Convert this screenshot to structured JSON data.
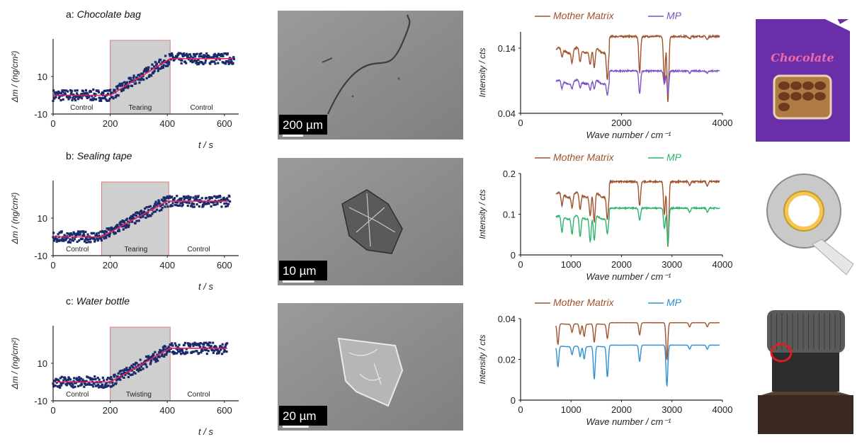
{
  "figure": {
    "rows": [
      {
        "panel_label": "a:",
        "panel_title": "Chocolate bag",
        "mass_chart": {
          "type": "line",
          "title": "a: Chocolate bag",
          "xlabel": "t / s",
          "ylabel": "Δm / (ng/cm²)",
          "xlim": [
            0,
            650
          ],
          "ylim": [
            -10,
            30
          ],
          "x_ticks": [
            "0",
            "200",
            "400",
            "600"
          ],
          "y_ticks": [
            "-10",
            "10"
          ],
          "shaded_region": [
            200,
            410
          ],
          "phase_labels": [
            {
              "label": "Control",
              "x": 100
            },
            {
              "label": "Tearing",
              "x": 305
            },
            {
              "label": "Control",
              "x": 520
            }
          ],
          "fit_line": {
            "x": [
              0,
              200,
              410,
              630
            ],
            "y": [
              0,
              0,
              19.5,
              19.5
            ]
          },
          "noise": 3.0,
          "x_range": [
            0,
            635
          ]
        },
        "sem": {
          "scale_label": "200 µm",
          "scale_bar_frac": 0.11,
          "particle": "fiber"
        },
        "ir_chart": {
          "type": "line",
          "xlabel": "Wave number / cm⁻¹",
          "ylabel": "Intensity / cts",
          "xlim": [
            0,
            4000
          ],
          "ylim": [
            0.04,
            0.165
          ],
          "x_ticks": [
            "0",
            "2000",
            "4000"
          ],
          "y_ticks": [
            "0.04",
            "0.14"
          ],
          "y_tick_values": [
            0.04,
            0.14
          ],
          "x_tick_values": [
            0,
            2000,
            4000
          ],
          "series": [
            {
              "name": "Mother Matrix",
              "color": "#a0522d",
              "base": 0.125,
              "top": 0.158,
              "dips": [
                [
                  820,
                  0.012
                ],
                [
                  1020,
                  0.018
                ],
                [
                  1180,
                  0.02
                ],
                [
                  1380,
                  0.022
                ],
                [
                  1460,
                  0.03
                ],
                [
                  1720,
                  0.045
                ],
                [
                  2360,
                  0.055
                ],
                [
                  2850,
                  0.07
                ],
                [
                  2920,
                  0.1
                ],
                [
                  3350,
                  0.004
                ],
                [
                  3700,
                  0.005
                ]
              ]
            },
            {
              "name": "MP",
              "color": "#7b52c7",
              "base": 0.079,
              "top": 0.105,
              "dips": [
                [
                  820,
                  0.012
                ],
                [
                  1020,
                  0.01
                ],
                [
                  1180,
                  0.01
                ],
                [
                  1380,
                  0.012
                ],
                [
                  1460,
                  0.014
                ],
                [
                  1720,
                  0.02
                ],
                [
                  2360,
                  0.035
                ],
                [
                  2850,
                  0.02
                ],
                [
                  2920,
                  0.035
                ],
                [
                  3350,
                  0.003
                ],
                [
                  3700,
                  0.003
                ]
              ]
            }
          ],
          "x_range": [
            700,
            3950
          ]
        },
        "photo": {
          "type": "chocolate",
          "label": "Chocolate"
        }
      },
      {
        "panel_label": "b:",
        "panel_title": "Sealing tape",
        "mass_chart": {
          "type": "line",
          "title": "b: Sealing tape",
          "xlabel": "t / s",
          "ylabel": "Δm / (ng/cm²)",
          "xlim": [
            0,
            650
          ],
          "ylim": [
            -10,
            30
          ],
          "x_ticks": [
            "0",
            "200",
            "400",
            "600"
          ],
          "y_ticks": [
            "-10",
            "10"
          ],
          "shaded_region": [
            170,
            405
          ],
          "phase_labels": [
            {
              "label": "Control",
              "x": 85
            },
            {
              "label": "Tearing",
              "x": 290
            },
            {
              "label": "Control",
              "x": 510
            }
          ],
          "fit_line": {
            "x": [
              0,
              170,
              400,
              615
            ],
            "y": [
              0,
              0,
              19,
              19
            ]
          },
          "noise": 3.0,
          "x_range": [
            0,
            620
          ]
        },
        "sem": {
          "scale_label": "10 µm",
          "scale_bar_frac": 0.17,
          "particle": "crumple"
        },
        "ir_chart": {
          "type": "line",
          "xlabel": "Wave number / cm⁻¹",
          "ylabel": "Intensity / cts",
          "xlim": [
            0,
            4000
          ],
          "ylim": [
            0,
            0.2
          ],
          "x_ticks": [
            "0",
            "1000",
            "2000",
            "3000",
            "4000"
          ],
          "y_ticks": [
            "0",
            "0.1",
            "0.2"
          ],
          "y_tick_values": [
            0,
            0.1,
            0.2
          ],
          "x_tick_values": [
            0,
            1000,
            2000,
            3000,
            4000
          ],
          "series": [
            {
              "name": "Mother Matrix",
              "color": "#a0522d",
              "base": 0.13,
              "top": 0.18,
              "dips": [
                [
                  820,
                  0.03
                ],
                [
                  1020,
                  0.03
                ],
                [
                  1180,
                  0.04
                ],
                [
                  1380,
                  0.05
                ],
                [
                  1460,
                  0.07
                ],
                [
                  1720,
                  0.06
                ],
                [
                  2360,
                  0.06
                ],
                [
                  2850,
                  0.08
                ],
                [
                  2920,
                  0.16
                ],
                [
                  3350,
                  0.01
                ],
                [
                  3700,
                  0.01
                ]
              ]
            },
            {
              "name": "MP",
              "color": "#2eb36b",
              "base": 0.08,
              "top": 0.115,
              "dips": [
                [
                  820,
                  0.04
                ],
                [
                  1020,
                  0.04
                ],
                [
                  1180,
                  0.05
                ],
                [
                  1380,
                  0.06
                ],
                [
                  1460,
                  0.06
                ],
                [
                  1720,
                  0.04
                ],
                [
                  2360,
                  0.03
                ],
                [
                  2850,
                  0.05
                ],
                [
                  2920,
                  0.09
                ],
                [
                  3350,
                  0.01
                ],
                [
                  3700,
                  0.01
                ]
              ]
            }
          ],
          "x_range": [
            700,
            3950
          ]
        },
        "photo": {
          "type": "tape",
          "label": ""
        }
      },
      {
        "panel_label": "c:",
        "panel_title": "Water bottle",
        "mass_chart": {
          "type": "line",
          "title": "c: Water bottle",
          "xlabel": "t / s",
          "ylabel": "Δm / (ng/cm²)",
          "xlim": [
            0,
            650
          ],
          "ylim": [
            -10,
            30
          ],
          "x_ticks": [
            "0",
            "200",
            "400",
            "600"
          ],
          "y_ticks": [
            "-10",
            "10"
          ],
          "shaded_region": [
            200,
            410
          ],
          "phase_labels": [
            {
              "label": "Control",
              "x": 85
            },
            {
              "label": "Twisting",
              "x": 300
            },
            {
              "label": "Control",
              "x": 510
            }
          ],
          "fit_line": {
            "x": [
              0,
              200,
              410,
              610
            ],
            "y": [
              0,
              0,
              18,
              18
            ]
          },
          "noise": 3.0,
          "x_range": [
            0,
            610
          ]
        },
        "sem": {
          "scale_label": "20 µm",
          "scale_bar_frac": 0.14,
          "particle": "flake"
        },
        "ir_chart": {
          "type": "line",
          "xlabel": "Wave number / cm⁻¹",
          "ylabel": "Intensity / cts",
          "xlim": [
            0,
            4000
          ],
          "ylim": [
            0,
            0.04
          ],
          "x_ticks": [
            "0",
            "1000",
            "2000",
            "3000",
            "4000"
          ],
          "y_ticks": [
            "0",
            "0.02",
            "0.04"
          ],
          "y_tick_values": [
            0,
            0.02,
            0.04
          ],
          "x_tick_values": [
            0,
            1000,
            2000,
            3000,
            4000
          ],
          "series": [
            {
              "name": "Mother Matrix",
              "color": "#a0522d",
              "base": 0.037,
              "top": 0.038,
              "dips": [
                [
                  740,
                  0.01
                ],
                [
                  1020,
                  0.004
                ],
                [
                  1180,
                  0.005
                ],
                [
                  1260,
                  0.006
                ],
                [
                  1460,
                  0.009
                ],
                [
                  1720,
                  0.007
                ],
                [
                  2360,
                  0.006
                ],
                [
                  2900,
                  0.018
                ],
                [
                  3350,
                  0.002
                ],
                [
                  3700,
                  0.002
                ]
              ]
            },
            {
              "name": "MP",
              "color": "#2f8fd1",
              "base": 0.026,
              "top": 0.027,
              "dips": [
                [
                  740,
                  0.01
                ],
                [
                  1020,
                  0.004
                ],
                [
                  1180,
                  0.005
                ],
                [
                  1260,
                  0.006
                ],
                [
                  1460,
                  0.016
                ],
                [
                  1720,
                  0.015
                ],
                [
                  2360,
                  0.008
                ],
                [
                  2900,
                  0.02
                ],
                [
                  3350,
                  0.002
                ],
                [
                  3700,
                  0.002
                ]
              ]
            }
          ],
          "x_range": [
            700,
            3950
          ]
        },
        "photo": {
          "type": "bottle",
          "label": ""
        }
      }
    ]
  },
  "chart_data": [
    {
      "type": "line",
      "title": "a: Chocolate bag",
      "xlabel": "t / s",
      "ylabel": "Δm / (ng/cm²)",
      "xlim": [
        0,
        650
      ],
      "ylim": [
        -10,
        30
      ],
      "series": [
        {
          "name": "",
          "x": [
            0,
            200,
            410,
            630
          ],
          "values": [
            0,
            0,
            19.5,
            19.5
          ]
        }
      ]
    },
    {
      "type": "line",
      "title": "",
      "xlabel": "Wave number / cm⁻¹",
      "ylabel": "Intensity / cts",
      "xlim": [
        0,
        4000
      ],
      "ylim": [
        0.04,
        0.165
      ],
      "series": [
        {
          "name": "Mother Matrix",
          "x": [
            700,
            1760,
            3950
          ],
          "values": [
            0.125,
            0.158,
            0.158
          ]
        },
        {
          "name": "MP",
          "x": [
            700,
            1760,
            3950
          ],
          "values": [
            0.079,
            0.105,
            0.105
          ]
        }
      ]
    },
    {
      "type": "line",
      "title": "b: Sealing tape",
      "xlabel": "t / s",
      "ylabel": "Δm / (ng/cm²)",
      "xlim": [
        0,
        650
      ],
      "ylim": [
        -10,
        30
      ],
      "series": [
        {
          "name": "",
          "x": [
            0,
            170,
            400,
            615
          ],
          "values": [
            0,
            0,
            19,
            19
          ]
        }
      ]
    },
    {
      "type": "line",
      "title": "",
      "xlabel": "Wave number / cm⁻¹",
      "ylabel": "Intensity / cts",
      "xlim": [
        0,
        4000
      ],
      "ylim": [
        0,
        0.2
      ],
      "series": [
        {
          "name": "Mother Matrix",
          "x": [
            700,
            1760,
            3950
          ],
          "values": [
            0.13,
            0.18,
            0.18
          ]
        },
        {
          "name": "MP",
          "x": [
            700,
            1760,
            3950
          ],
          "values": [
            0.08,
            0.115,
            0.115
          ]
        }
      ]
    },
    {
      "type": "line",
      "title": "c: Water bottle",
      "xlabel": "t / s",
      "ylabel": "Δm / (ng/cm²)",
      "xlim": [
        0,
        650
      ],
      "ylim": [
        -10,
        30
      ],
      "series": [
        {
          "name": "",
          "x": [
            0,
            200,
            410,
            610
          ],
          "values": [
            0,
            0,
            18,
            18
          ]
        }
      ]
    },
    {
      "type": "line",
      "title": "",
      "xlabel": "Wave number / cm⁻¹",
      "ylabel": "Intensity / cts",
      "xlim": [
        0,
        4000
      ],
      "ylim": [
        0,
        0.04
      ],
      "series": [
        {
          "name": "Mother Matrix",
          "x": [
            700,
            1000,
            3950
          ],
          "values": [
            0.037,
            0.038,
            0.03
          ]
        },
        {
          "name": "MP",
          "x": [
            700,
            1000,
            3950
          ],
          "values": [
            0.026,
            0.027,
            0.02
          ]
        }
      ]
    }
  ]
}
